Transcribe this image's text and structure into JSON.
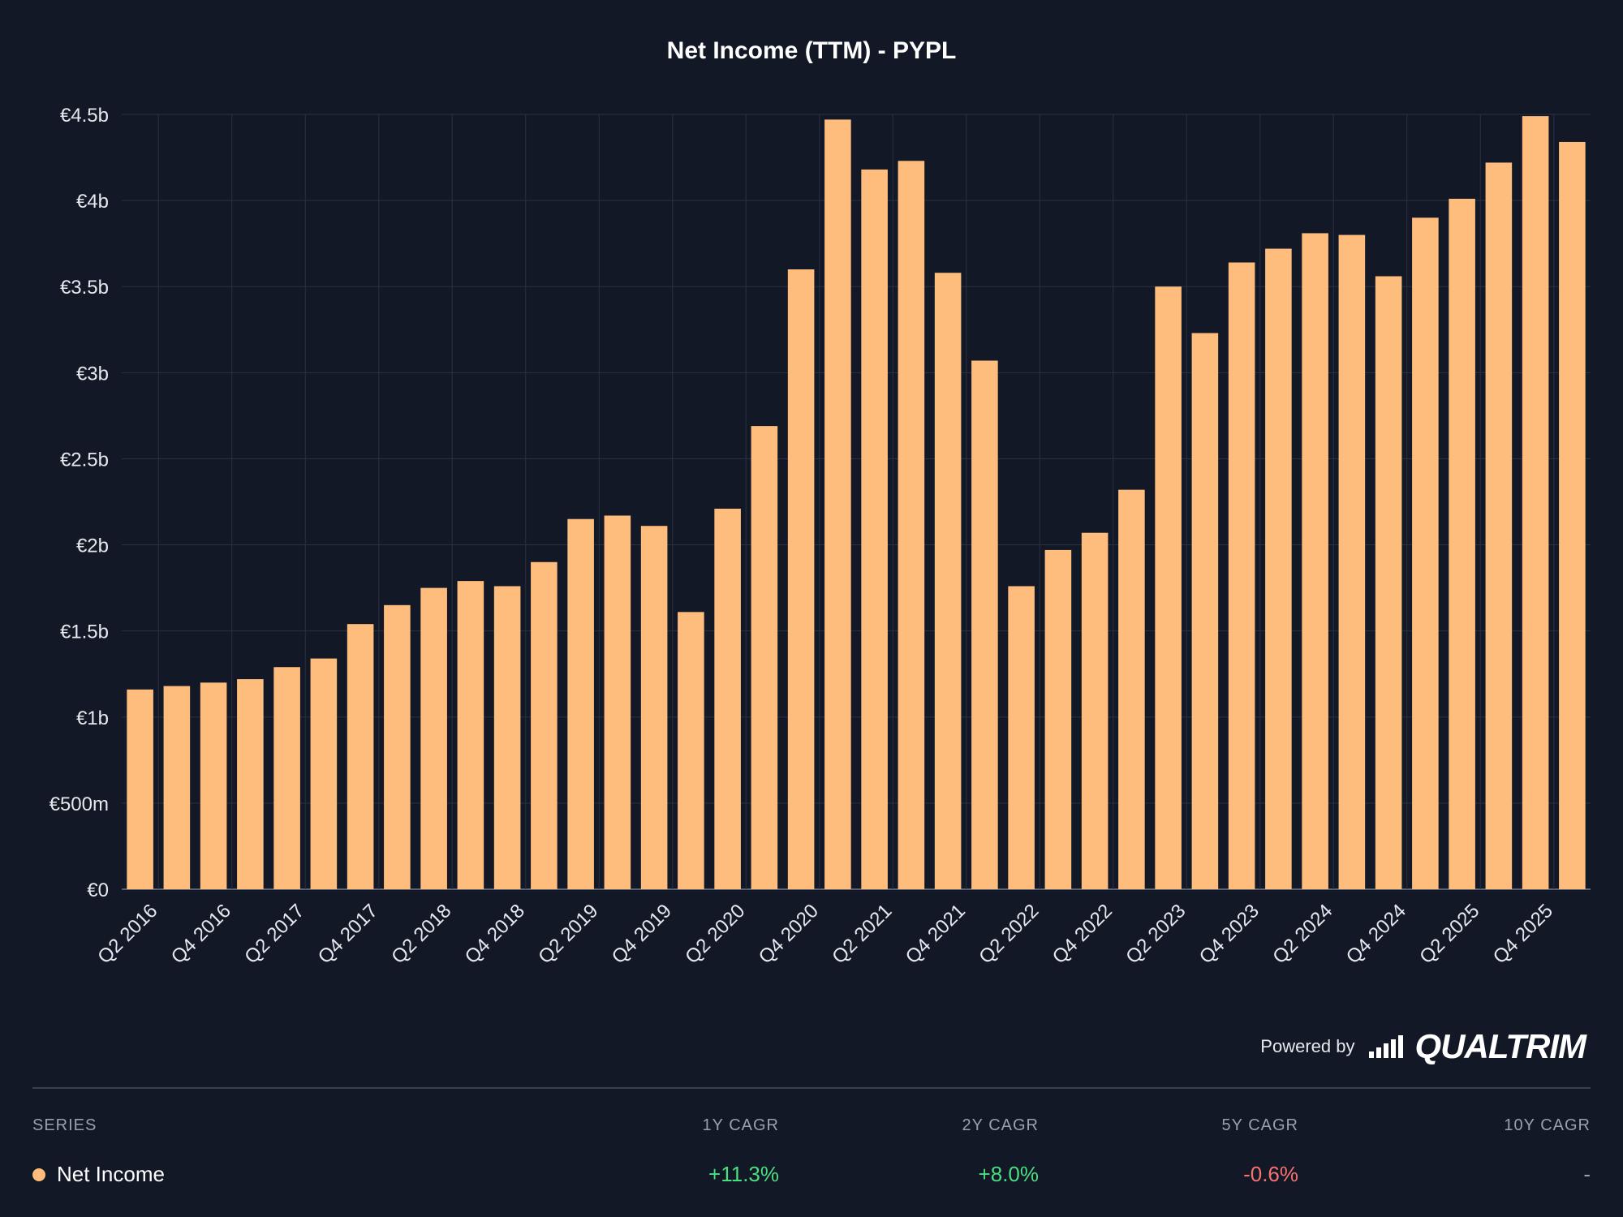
{
  "colors": {
    "background": "#121826",
    "bar": "#ffbd7d",
    "grid": "#2a3142",
    "positive": "#4ade80",
    "negative": "#f87171"
  },
  "chart_data": {
    "type": "bar",
    "title": "Net Income (TTM) - PYPL",
    "categories": [
      "Q2 2016",
      "Q3 2016",
      "Q4 2016",
      "Q1 2017",
      "Q2 2017",
      "Q3 2017",
      "Q4 2017",
      "Q1 2018",
      "Q2 2018",
      "Q3 2018",
      "Q4 2018",
      "Q1 2019",
      "Q2 2019",
      "Q3 2019",
      "Q4 2019",
      "Q1 2020",
      "Q2 2020",
      "Q3 2020",
      "Q4 2020",
      "Q1 2021",
      "Q2 2021",
      "Q3 2021",
      "Q4 2021",
      "Q1 2022",
      "Q2 2022",
      "Q3 2022",
      "Q4 2022",
      "Q1 2023",
      "Q2 2023",
      "Q3 2023",
      "Q4 2023",
      "Q1 2024",
      "Q2 2024",
      "Q3 2024",
      "Q4 2024",
      "Q1 2025",
      "Q2 2025",
      "Q3 2025",
      "Q4 2025",
      "Q1 2026"
    ],
    "tick_labels": [
      "Q2 2016",
      "Q4 2016",
      "Q2 2017",
      "Q4 2017",
      "Q2 2018",
      "Q4 2018",
      "Q2 2019",
      "Q4 2019",
      "Q2 2020",
      "Q4 2020",
      "Q2 2021",
      "Q4 2021",
      "Q2 2022",
      "Q4 2022",
      "Q2 2023",
      "Q4 2023",
      "Q2 2024",
      "Q4 2024",
      "Q2 2025",
      "Q4 2025"
    ],
    "series": [
      {
        "name": "Net Income",
        "values": [
          1.16,
          1.18,
          1.2,
          1.22,
          1.29,
          1.34,
          1.54,
          1.65,
          1.75,
          1.79,
          1.76,
          1.9,
          2.15,
          2.17,
          2.11,
          1.61,
          2.21,
          2.69,
          3.6,
          4.47,
          4.18,
          4.23,
          3.58,
          3.07,
          1.76,
          1.97,
          2.07,
          2.32,
          3.5,
          3.23,
          3.64,
          3.72,
          3.81,
          3.8,
          3.56,
          3.9,
          4.01,
          4.22,
          4.49,
          4.34
        ]
      }
    ],
    "unit": "billion EUR",
    "ylim": [
      0,
      4.5
    ],
    "yticks": [
      "€0",
      "€500m",
      "€1b",
      "€1.5b",
      "€2b",
      "€2.5b",
      "€3b",
      "€3.5b",
      "€4b",
      "€4.5b"
    ],
    "grid": true
  },
  "footer": {
    "powered_by": "Powered by",
    "brand": "QUALTRIM"
  },
  "table": {
    "headers": [
      "SERIES",
      "1Y CAGR",
      "2Y CAGR",
      "5Y CAGR",
      "10Y CAGR"
    ],
    "rows": [
      {
        "series": "Net Income",
        "cagr_1y": "+11.3%",
        "cagr_2y": "+8.0%",
        "cagr_5y": "-0.6%",
        "cagr_10y": "-"
      }
    ]
  }
}
